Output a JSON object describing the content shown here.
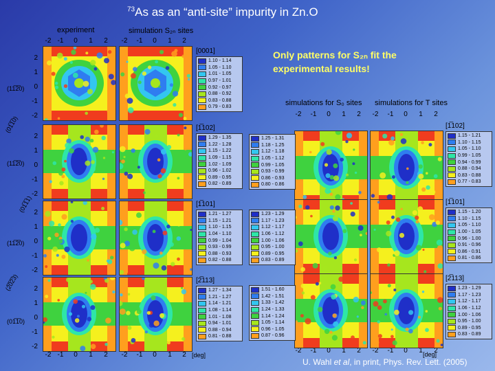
{
  "title": {
    "isotope": "73",
    "element": "As",
    "rest": " as an “anti-site” impurity in Zn.O"
  },
  "note": "Only patterns for S₂ₙ fit the experimental results!",
  "header_left": {
    "experiment": "experiment",
    "simulation": "simulation S₂ₙ sites"
  },
  "header_right": {
    "so": "simulations for S₀ sites",
    "t": "simulations for T sites"
  },
  "ticks": [
    "-2",
    "-1",
    "0",
    "1",
    "2"
  ],
  "y_ticks": [
    "2",
    "1",
    "0",
    "-1",
    "-2"
  ],
  "deg": "[deg]",
  "planes": [
    "(11̅2̅0)",
    "(11̅2̅0)",
    "(11̅2̅0)",
    "(01̅1̅0)"
  ],
  "rot_planes": [
    "(01̅1̅0)",
    "(01̅1̅1)",
    "(2̅0̅2̅3)"
  ],
  "legend_colors": [
    "#1f2fc8",
    "#2f7df0",
    "#33c6f0",
    "#2ee6a8",
    "#3fd23f",
    "#a6e61e",
    "#f5f01e",
    "#ff9f1e",
    "#f03c1e"
  ],
  "legends_left": [
    {
      "dir": "[0001]",
      "ranges": [
        "1.10 - 1.14",
        "1.05 - 1.10",
        "1.01 - 1.05",
        "0.97 - 1.01",
        "0.92 - 0.97",
        "0.88 - 0.92",
        "0.83 - 0.88",
        "0.79 - 0.83"
      ]
    },
    {
      "dir": "[1̅102]",
      "ranges": [
        "1.29 - 1.35",
        "1.22 - 1.28",
        "1.15 - 1.22",
        "1.09 - 1.15",
        "1.02 - 1.09",
        "0.96 - 1.02",
        "0.89 - 0.95",
        "0.82 - 0.89"
      ]
    },
    {
      "dir": "[1̅101]",
      "ranges": [
        "1.21 - 1.27",
        "1.15 - 1.21",
        "1.10 - 1.15",
        "1.04 - 1.10",
        "0.99 - 1.04",
        "0.93 - 0.99",
        "0.88 - 0.93",
        "0.82 - 0.88"
      ]
    },
    {
      "dir": "[2̅113]",
      "ranges": [
        "1.27 - 1.34",
        "1.21 - 1.27",
        "1.14 - 1.21",
        "1.08 - 1.14",
        "1.01 - 1.08",
        "0.94 - 1.01",
        "0.88 - 0.94",
        "0.81 - 0.88"
      ]
    }
  ],
  "legends_mid": [
    {
      "ranges": [
        "1.25 - 1.31",
        "1.18 - 1.25",
        "1.12 - 1.18",
        "1.05 - 1.12",
        "0.99 - 1.05",
        "0.93 - 0.99",
        "0.86 - 0.93",
        "0.80 - 0.86"
      ]
    },
    {
      "ranges": [
        "1.23 - 1.29",
        "1.17 - 1.23",
        "1.12 - 1.17",
        "1.06 - 1.12",
        "1.00 - 1.06",
        "0.95 - 1.00",
        "0.89 - 0.95",
        "0.83 - 0.89"
      ]
    },
    {
      "ranges": [
        "1.51 - 1.60",
        "1.42 - 1.51",
        "1.33 - 1.42",
        "1.24 - 1.33",
        "1.14 - 1.24",
        "1.05 - 1.14",
        "0.96 - 1.05",
        "0.87 - 0.96"
      ]
    }
  ],
  "legends_right": [
    {
      "dir": "[1̅102]",
      "ranges": [
        "1.15 - 1.21",
        "1.10 - 1.15",
        "1.05 - 1.10",
        "0.99 - 1.05",
        "0.94 - 0.99",
        "0.88 - 0.94",
        "0.83 - 0.88",
        "0.77 - 0.83"
      ]
    },
    {
      "dir": "[1̅101]",
      "ranges": [
        "1.15 - 1.20",
        "1.10 - 1.15",
        "1.05 - 1.10",
        "1.00 - 1.05",
        "0.96 - 1.00",
        "0.91 - 0.96",
        "0.86 - 0.91",
        "0.81 - 0.86"
      ]
    },
    {
      "dir": "[2̅113]",
      "ranges": [
        "1.23 - 1.29",
        "1.17 - 1.23",
        "1.12 - 1.17",
        "1.06 - 1.12",
        "1.00 - 1.06",
        "0.95 - 1.00",
        "0.89 - 0.95",
        "0.83 - 0.89"
      ]
    }
  ],
  "footer": {
    "prefix": "U. Wahl ",
    "etal": "et al",
    "suffix": ", in print, Phys. Rev. Lett. (2005)"
  }
}
